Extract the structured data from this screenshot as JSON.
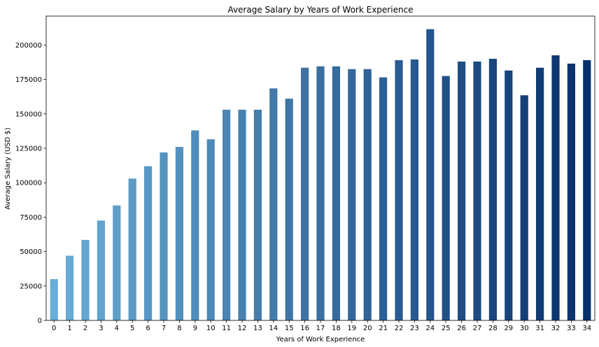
{
  "chart_data": {
    "type": "bar",
    "title": "Average Salary by Years of Work Experience",
    "xlabel": "Years of Work Experience",
    "ylabel": "Average Salary (USD $)",
    "categories": [
      "0",
      "1",
      "2",
      "3",
      "4",
      "5",
      "6",
      "7",
      "8",
      "9",
      "10",
      "11",
      "12",
      "13",
      "14",
      "15",
      "16",
      "17",
      "18",
      "19",
      "20",
      "21",
      "22",
      "23",
      "24",
      "25",
      "26",
      "27",
      "28",
      "29",
      "30",
      "31",
      "32",
      "33",
      "34"
    ],
    "values": [
      30000,
      47000,
      58500,
      72500,
      83500,
      103000,
      112000,
      122000,
      126000,
      138000,
      131500,
      153000,
      153000,
      153000,
      168500,
      161000,
      183500,
      184500,
      184500,
      182500,
      182500,
      176500,
      189000,
      189500,
      211500,
      177500,
      188000,
      188000,
      190000,
      181500,
      163500,
      183500,
      192500,
      186500,
      189000
    ],
    "ylim": [
      0,
      221000
    ],
    "yticks": [
      0,
      25000,
      50000,
      75000,
      100000,
      125000,
      150000,
      175000,
      200000
    ],
    "ytick_labels": [
      "0",
      "25000",
      "50000",
      "75000",
      "100000",
      "125000",
      "150000",
      "175000",
      "200000"
    ],
    "grid": false,
    "legend": "none",
    "colormap": "Blues",
    "color_start": "#6aaed6",
    "color_end": "#08306b"
  }
}
